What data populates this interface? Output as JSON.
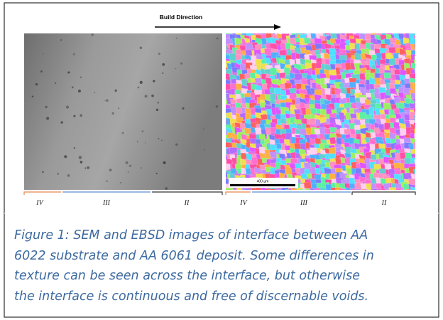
{
  "figure": {
    "annotation": "Build Direction",
    "scale_bar": "400 µm",
    "left_regions": [
      "IV",
      "III",
      "II"
    ],
    "right_regions": [
      "IV",
      "III",
      "II"
    ]
  },
  "caption": [
    "Figure 1: SEM and EBSD images of interface between AA",
    "6022 substrate and AA 6061 deposit. Some differences in",
    "texture can be seen across the interface, but otherwise",
    "the interface is continuous and free of discernable voids."
  ]
}
